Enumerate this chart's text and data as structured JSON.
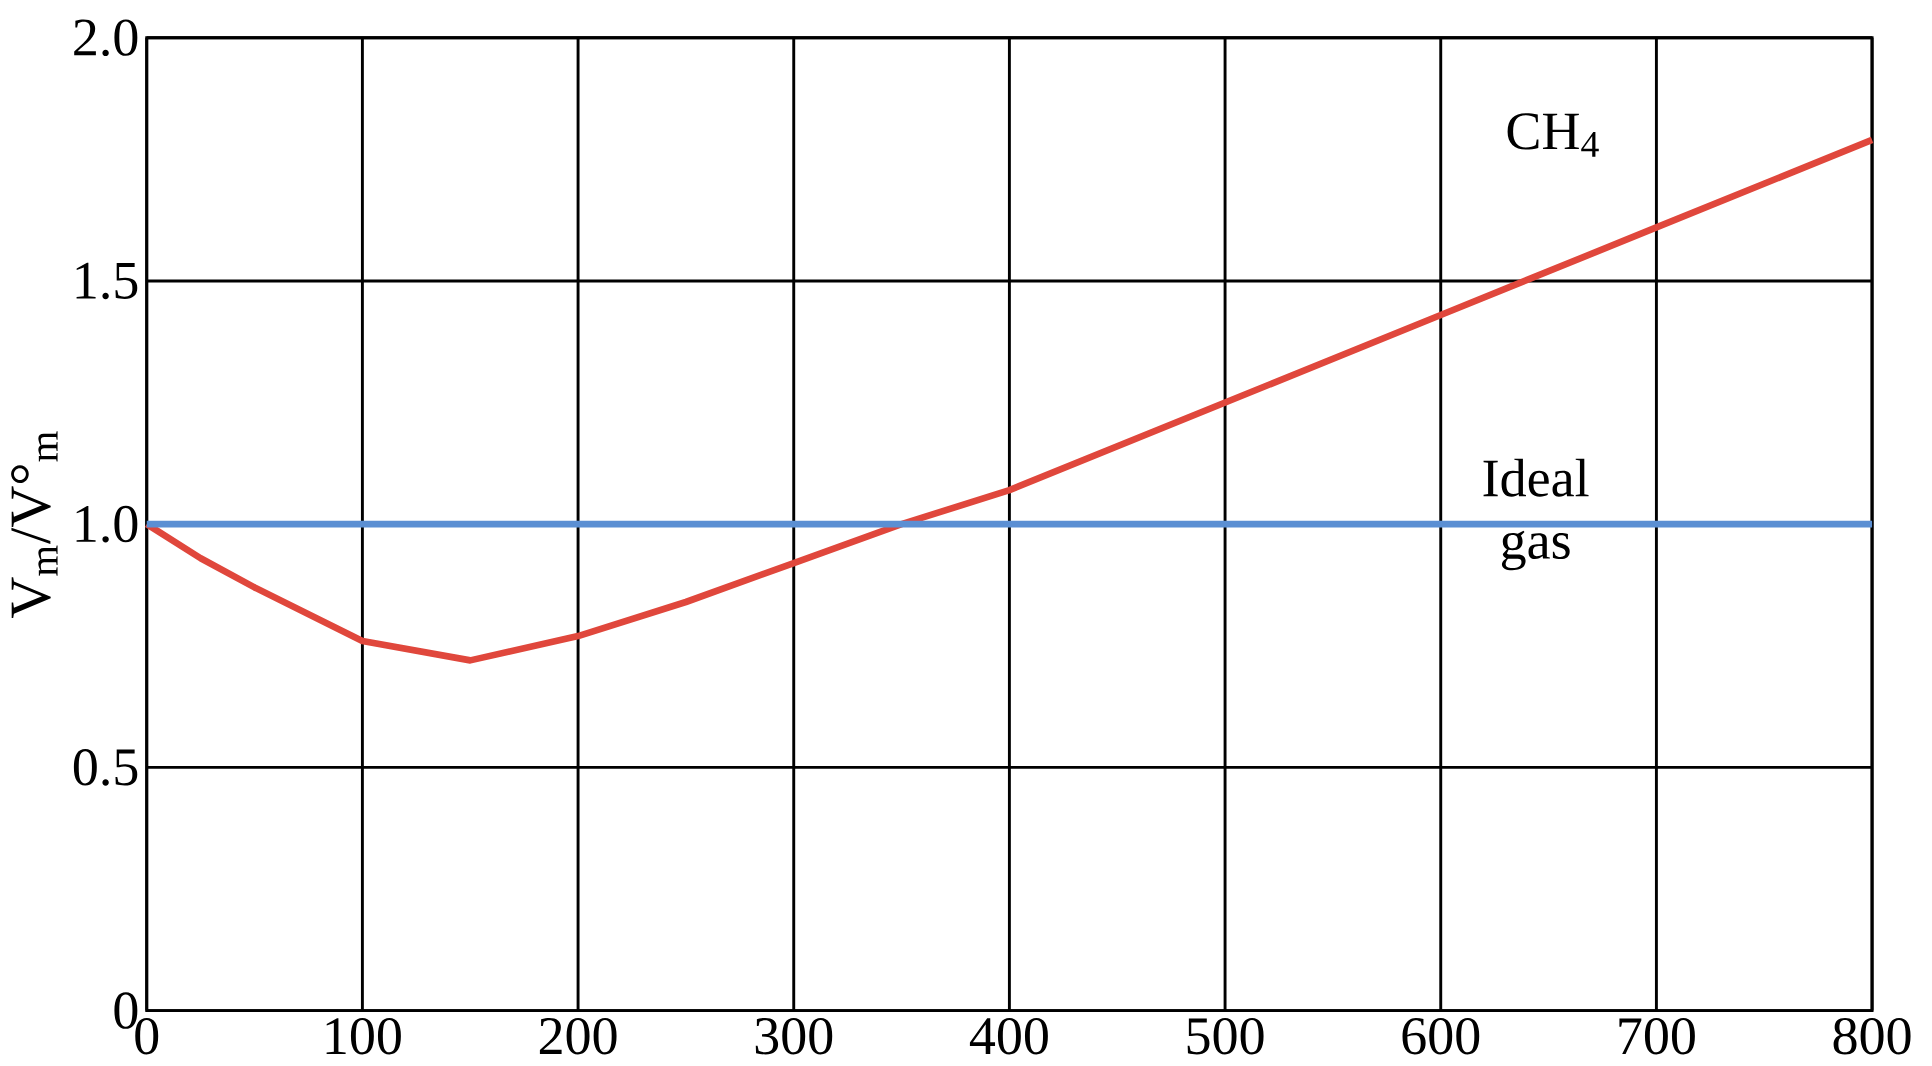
{
  "chart_data": {
    "type": "line",
    "ylabel": "V$_{m}$/V°$_{m}$",
    "x": [
      0,
      25,
      50,
      100,
      150,
      200,
      250,
      300,
      350,
      400,
      500,
      600,
      700,
      800
    ],
    "series": [
      {
        "name": "CH$_{4}$",
        "color": "#e0473c",
        "values": [
          1.0,
          0.93,
          0.87,
          0.76,
          0.72,
          0.77,
          0.84,
          0.92,
          1.0,
          1.07,
          1.25,
          1.43,
          1.61,
          1.79
        ]
      },
      {
        "name": "Ideal gas",
        "color": "#5b8fd3",
        "x": [
          0,
          800
        ],
        "values": [
          1.0,
          1.0
        ]
      }
    ],
    "xlim": [
      0,
      800
    ],
    "ylim": [
      0,
      2.0
    ],
    "xticks": [
      0,
      100,
      200,
      300,
      400,
      500,
      600,
      700,
      800
    ],
    "yticks": [
      0,
      0.5,
      {
        "value": 1.0,
        "label": "1.0"
      },
      1.5,
      {
        "value": 2.0,
        "label": "2.0"
      }
    ],
    "grid": true,
    "marker": "none",
    "line_style": "solid"
  }
}
